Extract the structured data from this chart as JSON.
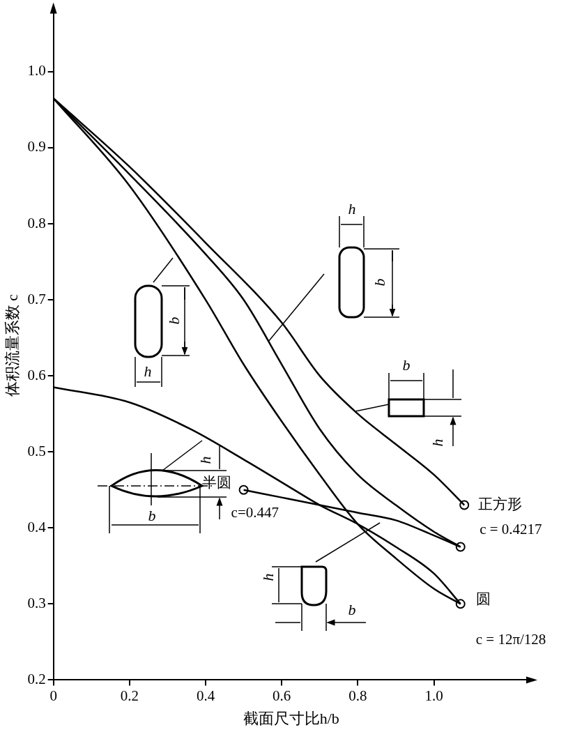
{
  "chart_data": {
    "type": "line",
    "xlabel": "截面尺寸比h/b",
    "ylabel": "体积流量系数 c",
    "xlim": [
      0,
      1.25
    ],
    "ylim": [
      0.2,
      1.08
    ],
    "xticks": [
      0,
      0.2,
      0.4,
      0.6,
      0.8,
      {
        "value": 1,
        "label": "1.0"
      }
    ],
    "yticks": [
      0.2,
      0.3,
      0.4,
      0.5,
      0.6,
      0.7,
      0.8,
      0.9,
      {
        "value": 1,
        "label": "1.0"
      }
    ],
    "grid": false,
    "legend": false,
    "line_style": "solid",
    "series": [
      {
        "color": "#000000",
        "x": [
          0,
          0.2,
          0.4,
          0.6,
          0.7,
          0.8,
          0.9,
          1.0,
          1.08
        ],
        "values": [
          0.965,
          0.875,
          0.775,
          0.67,
          0.6,
          0.55,
          0.51,
          0.47,
          0.43
        ]
      },
      {
        "color": "#000000",
        "x": [
          0,
          0.2,
          0.4,
          0.5,
          0.6,
          0.7,
          0.8,
          0.9,
          1.0,
          1.07
        ],
        "values": [
          0.965,
          0.865,
          0.76,
          0.7,
          0.615,
          0.53,
          0.47,
          0.43,
          0.395,
          0.375
        ]
      },
      {
        "color": "#000000",
        "x": [
          0,
          0.2,
          0.4,
          0.5,
          0.6,
          0.7,
          0.8,
          0.9,
          1.0,
          1.07
        ],
        "values": [
          0.965,
          0.85,
          0.7,
          0.615,
          0.54,
          0.47,
          0.405,
          0.36,
          0.32,
          0.3
        ]
      },
      {
        "color": "#000000",
        "x": [
          0,
          0.2,
          0.36,
          0.5,
          0.6,
          0.7,
          0.8,
          0.9,
          1.0,
          1.07
        ],
        "values": [
          0.585,
          0.565,
          0.53,
          0.49,
          0.46,
          0.43,
          0.405,
          0.375,
          0.34,
          0.3
        ]
      },
      {
        "color": "#000000",
        "x": [
          0.5,
          0.6,
          0.7,
          0.8,
          0.9,
          1.0,
          1.07
        ],
        "values": [
          0.45,
          0.44,
          0.43,
          0.42,
          0.41,
          0.39,
          0.375
        ]
      },
      {
        "type": "scatter",
        "marker": "circle",
        "color": "#000000",
        "x": [
          1.08,
          1.07,
          1.07,
          0.5
        ],
        "values": [
          0.43,
          0.375,
          0.3,
          0.45
        ]
      }
    ],
    "annotations": [
      {
        "text": "正方形",
        "x": 1.08,
        "y": 0.43
      },
      {
        "text": "c = 0.4217",
        "x": 1.08,
        "y": 0.43
      },
      {
        "text": "圆",
        "x": 1.07,
        "y": 0.3
      },
      {
        "text": "c = 12π/128",
        "x": 1.07,
        "y": 0.3
      },
      {
        "text": "半圆",
        "x": 0.5,
        "y": 0.45
      },
      {
        "text": "c=0.447",
        "x": 0.5,
        "y": 0.45
      },
      "b",
      "h",
      "h",
      "b",
      "b",
      "h",
      "h",
      "b",
      "h",
      "b"
    ]
  }
}
